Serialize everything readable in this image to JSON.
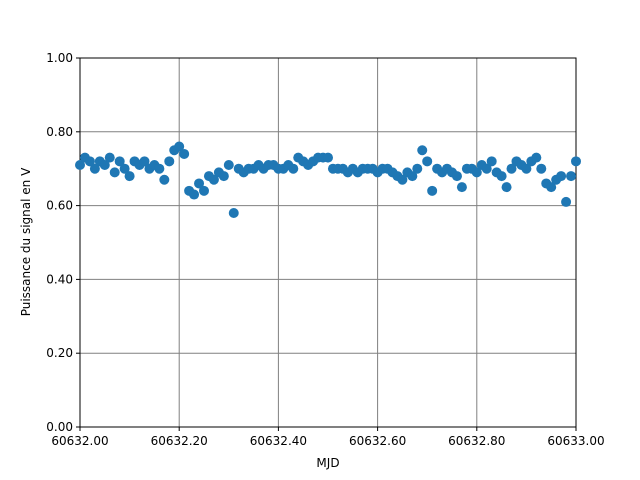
{
  "chart_data": {
    "type": "scatter",
    "xlabel": "MJD",
    "ylabel": "Puissance du signal en V",
    "x": [
      60632.0,
      60632.01,
      60632.02,
      60632.03,
      60632.04,
      60632.05,
      60632.06,
      60632.07,
      60632.08,
      60632.09,
      60632.1,
      60632.11,
      60632.12,
      60632.13,
      60632.14,
      60632.15,
      60632.16,
      60632.17,
      60632.18,
      60632.19,
      60632.2,
      60632.21,
      60632.22,
      60632.23,
      60632.24,
      60632.25,
      60632.26,
      60632.27,
      60632.28,
      60632.29,
      60632.3,
      60632.31,
      60632.32,
      60632.33,
      60632.34,
      60632.35,
      60632.36,
      60632.37,
      60632.38,
      60632.39,
      60632.4,
      60632.41,
      60632.42,
      60632.43,
      60632.44,
      60632.45,
      60632.46,
      60632.47,
      60632.48,
      60632.49,
      60632.5,
      60632.51,
      60632.52,
      60632.53,
      60632.54,
      60632.55,
      60632.56,
      60632.57,
      60632.58,
      60632.59,
      60632.6,
      60632.61,
      60632.62,
      60632.63,
      60632.64,
      60632.65,
      60632.66,
      60632.67,
      60632.68,
      60632.69,
      60632.7,
      60632.71,
      60632.72,
      60632.73,
      60632.74,
      60632.75,
      60632.76,
      60632.77,
      60632.78,
      60632.79,
      60632.8,
      60632.81,
      60632.82,
      60632.83,
      60632.84,
      60632.85,
      60632.86,
      60632.87,
      60632.88,
      60632.89,
      60632.9,
      60632.91,
      60632.92,
      60632.93,
      60632.94,
      60632.95,
      60632.96,
      60632.97,
      60632.98,
      60632.99,
      60633.0
    ],
    "series": [
      {
        "color": "#1f77b4",
        "values": [
          0.71,
          0.73,
          0.72,
          0.7,
          0.72,
          0.71,
          0.73,
          0.69,
          0.72,
          0.7,
          0.68,
          0.72,
          0.71,
          0.72,
          0.7,
          0.71,
          0.7,
          0.67,
          0.72,
          0.75,
          0.76,
          0.74,
          0.64,
          0.63,
          0.66,
          0.64,
          0.68,
          0.67,
          0.69,
          0.68,
          0.71,
          0.58,
          0.7,
          0.69,
          0.7,
          0.7,
          0.71,
          0.7,
          0.71,
          0.71,
          0.7,
          0.7,
          0.71,
          0.7,
          0.73,
          0.72,
          0.71,
          0.72,
          0.73,
          0.73,
          0.73,
          0.7,
          0.7,
          0.7,
          0.69,
          0.7,
          0.69,
          0.7,
          0.7,
          0.7,
          0.69,
          0.7,
          0.7,
          0.69,
          0.68,
          0.67,
          0.69,
          0.68,
          0.7,
          0.75,
          0.72,
          0.64,
          0.7,
          0.69,
          0.7,
          0.69,
          0.68,
          0.65,
          0.7,
          0.7,
          0.69,
          0.71,
          0.7,
          0.72,
          0.69,
          0.68,
          0.65,
          0.7,
          0.72,
          0.71,
          0.7,
          0.72,
          0.73,
          0.7,
          0.66,
          0.65,
          0.67,
          0.68,
          0.61,
          0.68,
          0.72
        ]
      }
    ],
    "xlim": [
      60632.0,
      60633.0
    ],
    "xticks": [
      {
        "value": 60632.0,
        "label": "60632.00"
      },
      {
        "value": 60632.2,
        "label": "60632.20"
      },
      {
        "value": 60632.4,
        "label": "60632.40"
      },
      {
        "value": 60632.6,
        "label": "60632.60"
      },
      {
        "value": 60632.8,
        "label": "60632.80"
      },
      {
        "value": 60633.0,
        "label": "60633.00"
      }
    ],
    "ylim": [
      0,
      1.0
    ],
    "yticks": [
      {
        "value": 0,
        "label": "0.00"
      },
      {
        "value": 0.2,
        "label": "0.20"
      },
      {
        "value": 0.4,
        "label": "0.40"
      },
      {
        "value": 0.6,
        "label": "0.60"
      },
      {
        "value": 0.8,
        "label": "0.80"
      },
      {
        "value": 1.0,
        "label": "1.00"
      }
    ],
    "grid": true
  }
}
